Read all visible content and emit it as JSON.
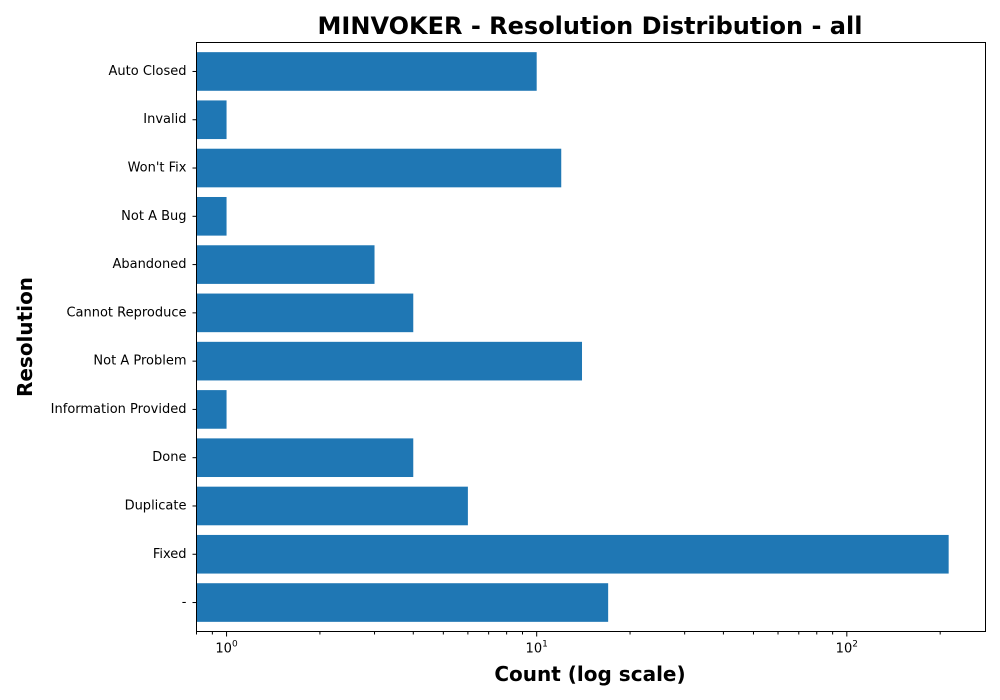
{
  "chart_data": {
    "type": "bar",
    "orientation": "horizontal",
    "title": "MINVOKER - Resolution Distribution - all",
    "xlabel": "Count (log scale)",
    "ylabel": "Resolution",
    "xscale": "log",
    "xlim": [
      0.8,
      280
    ],
    "x_ticks": [
      1,
      10,
      100
    ],
    "x_tick_labels": [
      {
        "base": "10",
        "exp": "0"
      },
      {
        "base": "10",
        "exp": "1"
      },
      {
        "base": "10",
        "exp": "2"
      }
    ],
    "categories": [
      "-",
      "Fixed",
      "Duplicate",
      "Done",
      "Information Provided",
      "Not A Problem",
      "Cannot Reproduce",
      "Abandoned",
      "Not A Bug",
      "Won't Fix",
      "Invalid",
      "Auto Closed"
    ],
    "values": [
      17,
      213,
      6,
      4,
      1,
      14,
      4,
      3,
      1,
      12,
      1,
      10
    ],
    "bar_color": "#1f77b4",
    "grid": false,
    "legend": "none"
  }
}
